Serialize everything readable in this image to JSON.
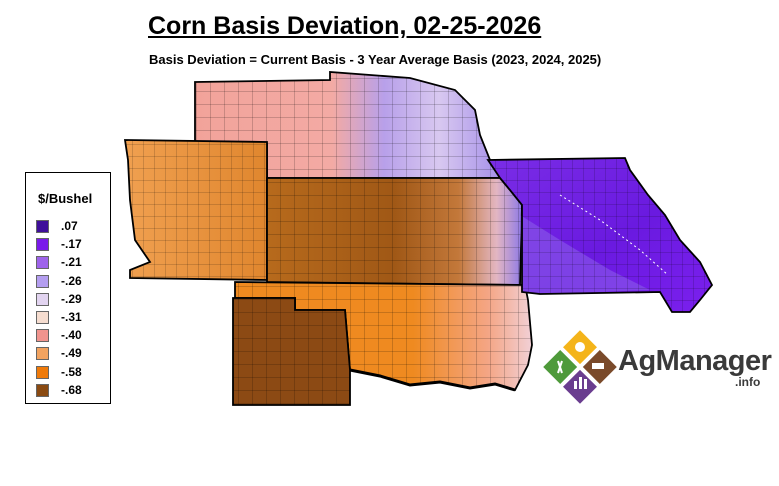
{
  "title": "Corn Basis Deviation, 02-25-2026",
  "subtitle": "Basis Deviation = Current Basis - 3 Year Average Basis (2023, 2024, 2025)",
  "legend": {
    "title": "$/Bushel",
    "items": [
      {
        "label": ".07",
        "color": "#3f0f9a"
      },
      {
        "label": "-.17",
        "color": "#7a1aea"
      },
      {
        "label": "-.21",
        "color": "#9e63ea"
      },
      {
        "label": "-.26",
        "color": "#b49ef0"
      },
      {
        "label": "-.29",
        "color": "#e2d4f0"
      },
      {
        "label": "-.31",
        "color": "#f6ddd0"
      },
      {
        "label": "-.40",
        "color": "#f1948e"
      },
      {
        "label": "-.49",
        "color": "#f2a360"
      },
      {
        "label": "-.58",
        "color": "#ef7a0a"
      },
      {
        "label": "-.68",
        "color": "#8a4a12"
      }
    ]
  },
  "logo": {
    "name": "AgManager",
    "suffix": ".info",
    "colors": [
      "#f4b41a",
      "#6a3d8f",
      "#4e9a3a",
      "#7a4a2a"
    ]
  }
}
